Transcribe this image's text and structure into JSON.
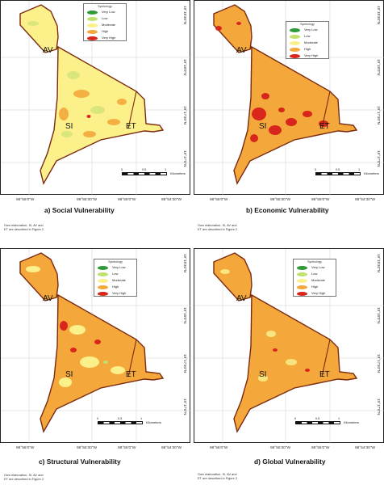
{
  "legend": {
    "title": "Symbology",
    "entries": [
      {
        "label": "Very Low",
        "color": "#2f9a3a"
      },
      {
        "label": "Low",
        "color": "#bfe06d"
      },
      {
        "label": "Moderate",
        "color": "#fbf08a"
      },
      {
        "label": "High",
        "color": "#f4a83c"
      },
      {
        "label": "Very High",
        "color": "#d9261c"
      }
    ]
  },
  "latitudes": [
    "19°18'30\"N",
    "19°18'0\"N",
    "19°17'30\"N",
    "19°17'0\"N"
  ],
  "longitudes": [
    "98°56'0\"W",
    "98°55'30\"W",
    "98°55'0\"W",
    "98°54'30\"W"
  ],
  "zones": {
    "av": "AV",
    "si": "SI",
    "et": "ET"
  },
  "scale": {
    "zero": "0",
    "half": "0.5",
    "one": "1",
    "units": "Kilometers"
  },
  "note": {
    "line1": "Own elaboration, SI, AV and",
    "line2": "ET are described in Figure 2."
  },
  "panels": [
    {
      "caption": "a) Social Vulnerability",
      "base_color": "#fbf08a"
    },
    {
      "caption": "b) Economic  Vulnerability",
      "base_color": "#f4a83c"
    },
    {
      "caption": "c) Structural  Vulnerability",
      "base_color": "#f4a83c"
    },
    {
      "caption": "d) Global Vulnerability",
      "base_color": "#f4a83c"
    }
  ]
}
